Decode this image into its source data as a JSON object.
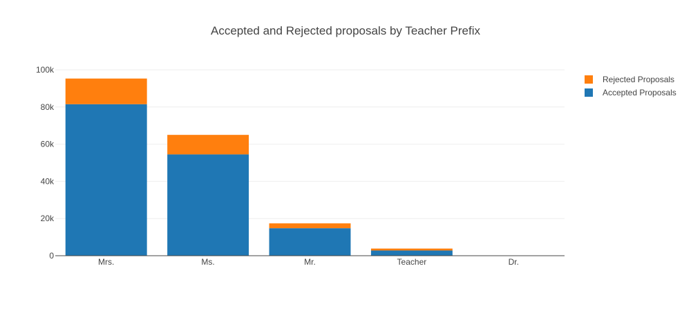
{
  "chart_data": {
    "type": "bar",
    "stacked": true,
    "title": "Accepted and Rejected proposals by Teacher Prefix",
    "xlabel": "",
    "ylabel": "",
    "categories": [
      "Mrs.",
      "Ms.",
      "Mr.",
      "Teacher",
      "Dr."
    ],
    "series": [
      {
        "name": "Accepted Proposals",
        "color": "#1f77b4",
        "values": [
          81500,
          54500,
          14800,
          2800,
          10
        ]
      },
      {
        "name": "Rejected Proposals",
        "color": "#ff7f0e",
        "values": [
          13800,
          10500,
          2600,
          1050,
          3
        ]
      }
    ],
    "ylim": [
      0,
      100000
    ],
    "yticks": [
      0,
      20000,
      40000,
      60000,
      80000,
      100000
    ],
    "ytick_labels": [
      "0",
      "20k",
      "40k",
      "60k",
      "80k",
      "100k"
    ],
    "grid": true,
    "legend": {
      "position": "top-right",
      "entries": [
        "Rejected Proposals",
        "Accepted Proposals"
      ]
    }
  }
}
